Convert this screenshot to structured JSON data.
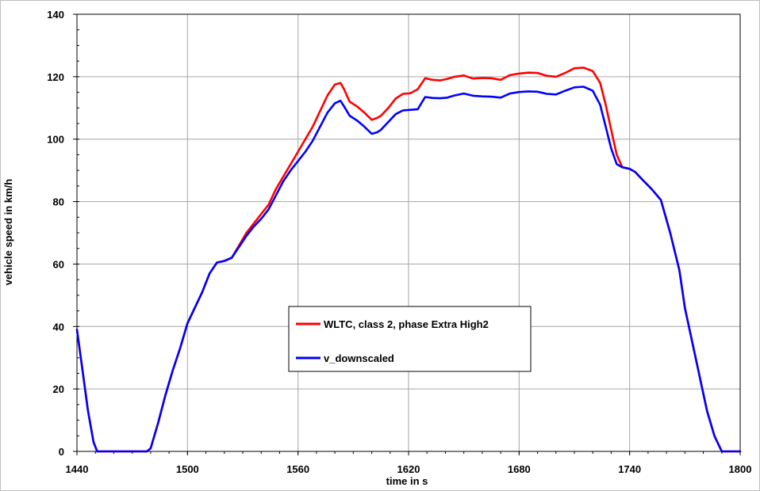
{
  "chart_data": {
    "type": "line",
    "xlabel": "time in s",
    "ylabel": "vehicle speed in km/h",
    "xlim": [
      1440,
      1800
    ],
    "ylim": [
      0,
      140
    ],
    "xticks": [
      "1440",
      "1500",
      "1560",
      "1620",
      "1680",
      "1740",
      "1800"
    ],
    "yticks": [
      "0",
      "20",
      "40",
      "60",
      "80",
      "100",
      "120",
      "140"
    ],
    "grid": true,
    "legend_position": "center",
    "series": [
      {
        "name": "WLTC, class 2, phase Extra High2",
        "color": "#ff0000",
        "x": [
          1440,
          1443,
          1446,
          1449,
          1451,
          1455,
          1460,
          1465,
          1470,
          1475,
          1478,
          1480,
          1484,
          1488,
          1492,
          1496,
          1500,
          1504,
          1508,
          1512,
          1516,
          1520,
          1524,
          1528,
          1532,
          1536,
          1540,
          1544,
          1548,
          1552,
          1556,
          1560,
          1564,
          1568,
          1572,
          1576,
          1580,
          1583,
          1585,
          1588,
          1592,
          1596,
          1600,
          1603,
          1605,
          1609,
          1613,
          1617,
          1621,
          1625,
          1629,
          1633,
          1637,
          1641,
          1645,
          1650,
          1655,
          1660,
          1665,
          1670,
          1675,
          1680,
          1685,
          1690,
          1695,
          1700,
          1705,
          1710,
          1715,
          1720,
          1724,
          1727,
          1730,
          1733,
          1736,
          1740,
          1743,
          1747,
          1752,
          1757,
          1762,
          1767,
          1770,
          1774,
          1778,
          1782,
          1786,
          1790,
          1794,
          1797,
          1800
        ],
        "values": [
          39,
          26,
          13,
          3,
          0,
          0,
          0,
          0,
          0,
          0,
          0,
          1,
          9,
          18,
          26,
          33,
          41,
          46,
          51,
          57,
          60.5,
          61,
          62,
          66,
          70,
          73,
          76,
          79,
          84,
          88,
          92,
          96,
          100,
          104,
          109,
          114,
          117.5,
          118,
          116,
          112,
          110.5,
          108.5,
          106.2,
          106.8,
          107.5,
          110,
          113,
          114.5,
          114.7,
          116,
          119.5,
          119,
          118.8,
          119.3,
          120,
          120.4,
          119.4,
          119.6,
          119.5,
          119,
          120.5,
          121,
          121.3,
          121.2,
          120.3,
          120,
          121.2,
          122.7,
          122.9,
          121.8,
          118,
          111,
          103,
          95,
          91,
          90.5,
          89.5,
          87,
          84,
          80.5,
          70,
          58,
          46,
          35,
          24,
          13,
          5,
          0,
          0,
          0,
          0
        ]
      },
      {
        "name": "v_downscaled",
        "color": "#0000ff",
        "x": [
          1440,
          1443,
          1446,
          1449,
          1451,
          1455,
          1460,
          1465,
          1470,
          1475,
          1478,
          1480,
          1484,
          1488,
          1492,
          1496,
          1500,
          1504,
          1508,
          1512,
          1516,
          1520,
          1524,
          1528,
          1532,
          1536,
          1540,
          1544,
          1548,
          1552,
          1556,
          1560,
          1564,
          1568,
          1572,
          1576,
          1580,
          1583,
          1585,
          1588,
          1592,
          1596,
          1600,
          1603,
          1605,
          1609,
          1613,
          1617,
          1621,
          1625,
          1629,
          1633,
          1637,
          1641,
          1645,
          1650,
          1655,
          1660,
          1665,
          1670,
          1675,
          1680,
          1685,
          1690,
          1695,
          1700,
          1705,
          1710,
          1715,
          1720,
          1724,
          1727,
          1730,
          1733,
          1736,
          1740,
          1743,
          1747,
          1752,
          1757,
          1762,
          1767,
          1770,
          1774,
          1778,
          1782,
          1786,
          1790,
          1794,
          1797,
          1800
        ],
        "values": [
          39,
          26,
          13,
          3,
          0,
          0,
          0,
          0,
          0,
          0,
          0,
          1,
          9,
          18,
          26,
          33,
          41,
          46,
          51,
          57,
          60.5,
          61,
          62,
          65.5,
          69,
          72,
          74.5,
          77.5,
          82,
          86.5,
          90,
          93,
          96,
          99.5,
          104,
          108.5,
          111.5,
          112.3,
          110.5,
          107.5,
          106,
          104,
          101.7,
          102.2,
          103,
          105.5,
          108,
          109.2,
          109.4,
          109.6,
          113.5,
          113.2,
          113.1,
          113.3,
          114,
          114.6,
          113.9,
          113.7,
          113.6,
          113.3,
          114.6,
          115.1,
          115.3,
          115.2,
          114.5,
          114.3,
          115.5,
          116.6,
          116.8,
          115.5,
          111,
          104,
          97,
          92,
          91,
          90.5,
          89.5,
          87,
          84,
          80.5,
          70,
          58,
          46,
          35,
          24,
          13,
          5,
          0,
          0,
          0,
          0
        ]
      }
    ]
  }
}
